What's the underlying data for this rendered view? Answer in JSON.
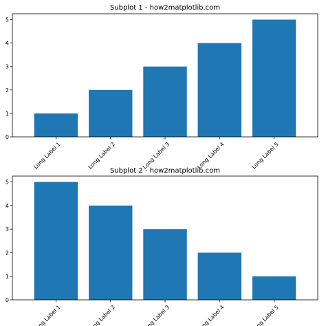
{
  "chart_data": [
    {
      "type": "bar",
      "title": "Subplot 1 - how2matplotlib.com",
      "categories": [
        "Long Label 1",
        "Long Label 2",
        "Long Label 3",
        "Long Label 4",
        "Long Label 5"
      ],
      "values": [
        1,
        2,
        3,
        4,
        5
      ],
      "yticks": [
        "0",
        "1",
        "2",
        "3",
        "4",
        "5"
      ],
      "ylim": [
        0,
        5.25
      ],
      "xlabel": "",
      "ylabel": "",
      "grid": false,
      "bar_color": "#1f77b4",
      "xtick_rotation_deg": 45
    },
    {
      "type": "bar",
      "title": "Subplot 2 - how2matplotlib.com",
      "categories": [
        "Long Label 1",
        "Long Label 2",
        "Long Label 3",
        "Long Label 4",
        "Long Label 5"
      ],
      "values": [
        5,
        4,
        3,
        2,
        1
      ],
      "yticks": [
        "0",
        "1",
        "2",
        "3",
        "4",
        "5"
      ],
      "ylim": [
        0,
        5.25
      ],
      "xlabel": "",
      "ylabel": "",
      "grid": false,
      "bar_color": "#1f77b4",
      "xtick_rotation_deg": 45
    }
  ]
}
